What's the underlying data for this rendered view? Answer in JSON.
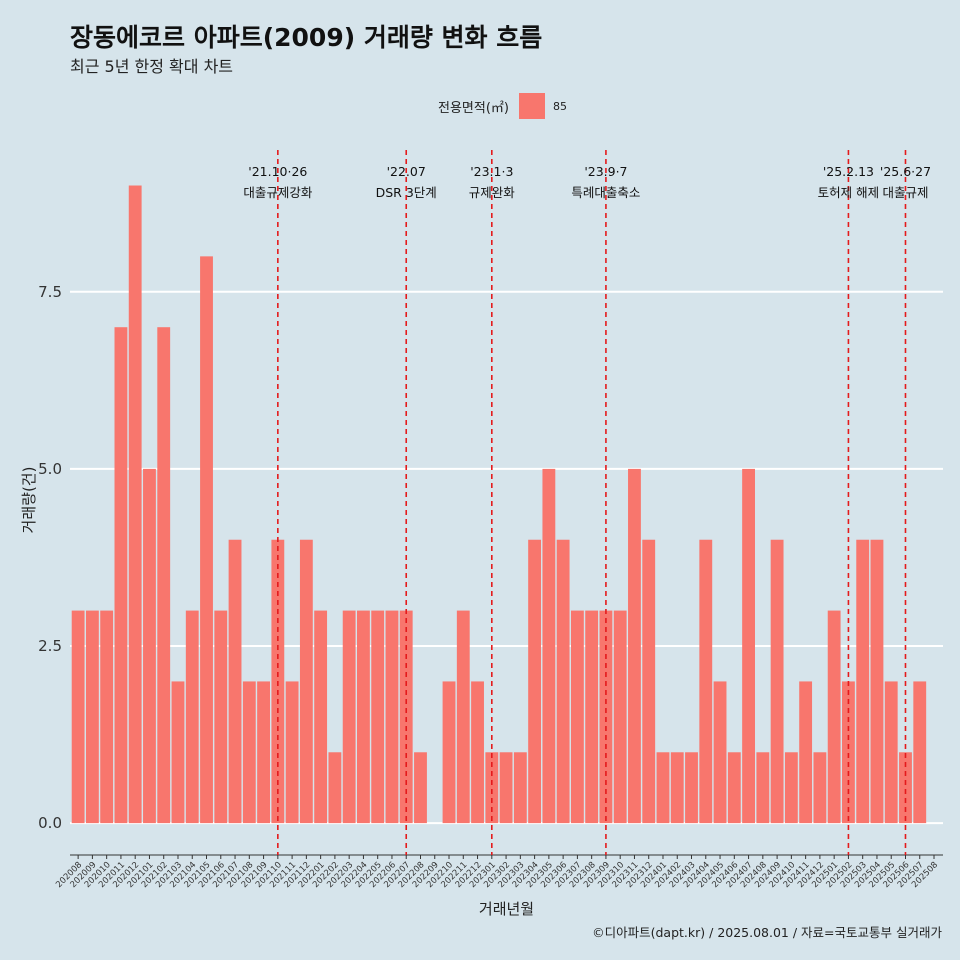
{
  "header": {
    "title": "장동에코르 아파트(2009) 거래량 변화 흐름",
    "subtitle": "최근 5년 한정 확대 차트"
  },
  "legend": {
    "title": "전용면적(㎡)",
    "item": "85",
    "color": "#f8766d"
  },
  "caption": "©디아파트(dapt.kr) / 2025.08.01 / 자료=국토교통부 실거래가",
  "chart_data": {
    "type": "bar",
    "xlabel": "거래년월",
    "ylabel": "거래량(건)",
    "ylim": [
      -0.45,
      9.6
    ],
    "yticks": [
      0,
      2.5,
      5,
      7.5
    ],
    "ytick_labels": [
      "0.0",
      "2.5",
      "5.0",
      "7.5"
    ],
    "categories": [
      "202008",
      "202009",
      "202010",
      "202011",
      "202012",
      "202101",
      "202102",
      "202103",
      "202104",
      "202105",
      "202106",
      "202107",
      "202108",
      "202109",
      "202110",
      "202111",
      "202112",
      "202201",
      "202202",
      "202203",
      "202204",
      "202205",
      "202206",
      "202207",
      "202208",
      "202209",
      "202210",
      "202211",
      "202212",
      "202301",
      "202302",
      "202303",
      "202304",
      "202305",
      "202306",
      "202307",
      "202308",
      "202309",
      "202310",
      "202311",
      "202312",
      "202401",
      "202402",
      "202403",
      "202404",
      "202405",
      "202406",
      "202407",
      "202408",
      "202409",
      "202410",
      "202411",
      "202412",
      "202501",
      "202502",
      "202503",
      "202504",
      "202505",
      "202506",
      "202507",
      "202508"
    ],
    "series": [
      {
        "name": "85",
        "color": "#f8766d",
        "values": [
          3,
          3,
          3,
          7,
          9,
          5,
          7,
          2,
          3,
          8,
          3,
          4,
          2,
          2,
          4,
          2,
          4,
          3,
          1,
          3,
          3,
          3,
          3,
          3,
          1,
          0,
          2,
          3,
          2,
          1,
          1,
          1,
          4,
          5,
          4,
          3,
          3,
          3,
          3,
          5,
          4,
          1,
          1,
          1,
          4,
          2,
          1,
          5,
          1,
          4,
          1,
          2,
          1,
          3,
          2,
          4,
          4,
          2,
          1,
          2,
          0
        ]
      }
    ],
    "annotations": [
      {
        "x": "202110",
        "date": "'21.10·26",
        "label": "대출규제강화"
      },
      {
        "x": "202207",
        "date": "'22.07",
        "label": "DSR 3단계"
      },
      {
        "x": "202301",
        "date": "'23.1·3",
        "label": "규제완화"
      },
      {
        "x": "202309",
        "date": "'23.9·7",
        "label": "특례대출축소"
      },
      {
        "x": "202502",
        "date": "'25.2.13",
        "label": "토허제 해제"
      },
      {
        "x": "202506",
        "date": "'25.6·27",
        "label": "대출규제"
      }
    ]
  }
}
